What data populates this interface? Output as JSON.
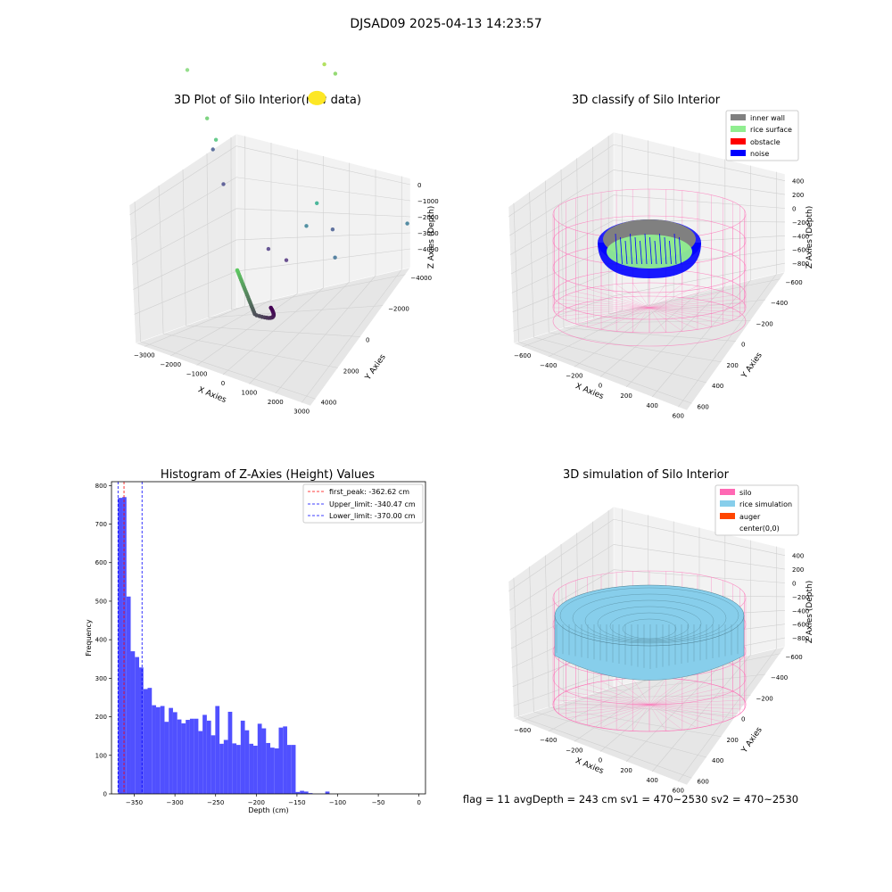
{
  "figure": {
    "title": "DJSAD09 2025-04-13 14:23:57",
    "status_line": "flag = 11   avgDepth = 243 cm  sv1 = 470~2530  sv2 = 470~2530"
  },
  "colors": {
    "inner_wall": "#808080",
    "rice_surface": "#90ee90",
    "obstacle": "#ff0000",
    "noise": "#0000ff",
    "silo": "#ff69b4",
    "rice_simulation": "#87ceeb",
    "auger": "#ff4500",
    "histogram_bar": "#5050ff",
    "first_peak": "#ff0000",
    "limit": "#0000ff"
  },
  "chart_data": [
    {
      "type": "scatter",
      "title": "3D Plot of Silo Interior(row data)",
      "xlabel": "X Axies",
      "ylabel": "Y Axies",
      "zlabel": "Z Axies (Depth)",
      "x_ticks": [
        "−3000",
        "−2000",
        "−1000",
        "0",
        "1000",
        "2000",
        "3000"
      ],
      "y_ticks": [
        "−4000",
        "−2000",
        "0",
        "2000",
        "4000"
      ],
      "z_ticks": [
        "0",
        "−1000",
        "−2000",
        "−3000",
        "−4000"
      ],
      "xlim": [
        -3000,
        3000
      ],
      "ylim": [
        -4000,
        4000
      ],
      "zlim": [
        -4400,
        200
      ],
      "points": [
        {
          "x": -2800,
          "y": 3000,
          "z": -1600,
          "color": "#7ad66f"
        },
        {
          "x": -2200,
          "y": 2600,
          "z": -2700,
          "color": "#5ec962"
        },
        {
          "x": -1900,
          "y": 2300,
          "z": -3100,
          "color": "#44bf70"
        },
        {
          "x": -1950,
          "y": 2200,
          "z": -3400,
          "color": "#3b528b"
        },
        {
          "x": -1500,
          "y": 1500,
          "z": -3950,
          "color": "#414487"
        },
        {
          "x": 400,
          "y": 3800,
          "z": -100,
          "color": "#a0da39"
        },
        {
          "x": 700,
          "y": 3700,
          "z": -200,
          "color": "#7ad151"
        },
        {
          "x": 800,
          "y": 1600,
          "z": -3400,
          "color": "#22a884"
        },
        {
          "x": 700,
          "y": 1000,
          "z": -3900,
          "color": "#2a788e"
        },
        {
          "x": 1300,
          "y": 1200,
          "z": -3800,
          "color": "#3b528b"
        },
        {
          "x": 1600,
          "y": 300,
          "z": -4100,
          "color": "#31688e"
        },
        {
          "x": 100,
          "y": -300,
          "z": -4300,
          "color": "#46327e"
        },
        {
          "x": 600,
          "y": -500,
          "z": -4300,
          "color": "#482878"
        },
        {
          "x": 3000,
          "y": 1800,
          "z": -3000,
          "color": "#2c728e"
        }
      ],
      "cluster_yellow": {
        "x": 350,
        "y": 3300,
        "z": -1000,
        "color": "#fde725"
      },
      "curve": {
        "color_start": "#5ec962",
        "color_end": "#440154"
      }
    },
    {
      "type": "scatter",
      "title": "3D classify of Silo Interior",
      "xlabel": "X Axies",
      "ylabel": "Y Axies",
      "zlabel": "Z Axies (Depth)",
      "x_ticks": [
        "−600",
        "−400",
        "−200",
        "0",
        "200",
        "400",
        "600"
      ],
      "y_ticks": [
        "−600",
        "−400",
        "−200",
        "0",
        "200",
        "400",
        "600"
      ],
      "z_ticks": [
        "400",
        "200",
        "0",
        "−200",
        "−400",
        "−600",
        "−800"
      ],
      "xlim": [
        -600,
        600
      ],
      "ylim": [
        -600,
        600
      ],
      "zlim": [
        -900,
        450
      ],
      "legend": [
        {
          "label": "inner wall",
          "color": "#808080"
        },
        {
          "label": "rice surface",
          "color": "#90ee90"
        },
        {
          "label": "obstacle",
          "color": "#ff0000"
        },
        {
          "label": "noise",
          "color": "#0000ff"
        }
      ],
      "legend_position": "top-right"
    },
    {
      "type": "bar",
      "title": "Histogram of Z-Axies (Height) Values",
      "xlabel": "Depth (cm)",
      "ylabel": "Frequency",
      "xlim": [
        -378,
        8
      ],
      "ylim": [
        0,
        810
      ],
      "x_ticks": [
        -350,
        -300,
        -250,
        -200,
        -150,
        -100,
        -50,
        0
      ],
      "y_ticks": [
        0,
        100,
        200,
        300,
        400,
        500,
        600,
        700,
        800
      ],
      "bin_start": -370,
      "bin_width": 5.2,
      "values": [
        768,
        770,
        512,
        370,
        355,
        328,
        272,
        275,
        230,
        225,
        228,
        187,
        223,
        212,
        193,
        183,
        192,
        195,
        195,
        163,
        205,
        190,
        152,
        228,
        130,
        140,
        213,
        131,
        127,
        190,
        165,
        130,
        125,
        182,
        170,
        132,
        120,
        118,
        172,
        175,
        127,
        127,
        5,
        8,
        6,
        2,
        0,
        0,
        0,
        6,
        0
      ],
      "reference_lines": [
        {
          "label": "first_peak: -362.62 cm",
          "value": -362.62,
          "color": "#ff0000"
        },
        {
          "label": "Upper_limit: -340.47 cm",
          "value": -340.47,
          "color": "#0000ff"
        },
        {
          "label": "Lower_limit: -370.00 cm",
          "value": -370.0,
          "color": "#0000ff"
        }
      ],
      "legend_position": "top-right"
    },
    {
      "type": "area",
      "title": "3D simulation of Silo Interior",
      "xlabel": "X Axies",
      "ylabel": "Y Axies",
      "zlabel": "Z Axies (Depth)",
      "x_ticks": [
        "−600",
        "−400",
        "−200",
        "0",
        "200",
        "400",
        "600"
      ],
      "y_ticks": [
        "−600",
        "−400",
        "−200",
        "0",
        "200",
        "400",
        "600"
      ],
      "z_ticks": [
        "400",
        "200",
        "0",
        "−200",
        "−400",
        "−600",
        "−800"
      ],
      "xlim": [
        -600,
        600
      ],
      "ylim": [
        -600,
        600
      ],
      "zlim": [
        -900,
        450
      ],
      "legend": [
        {
          "label": "silo",
          "color": "#ff69b4"
        },
        {
          "label": "rice simulation",
          "color": "#87ceeb"
        },
        {
          "label": "auger",
          "color": "#ff4500"
        },
        {
          "label": "center(0,0)",
          "color": ""
        }
      ],
      "legend_position": "top-right"
    }
  ]
}
